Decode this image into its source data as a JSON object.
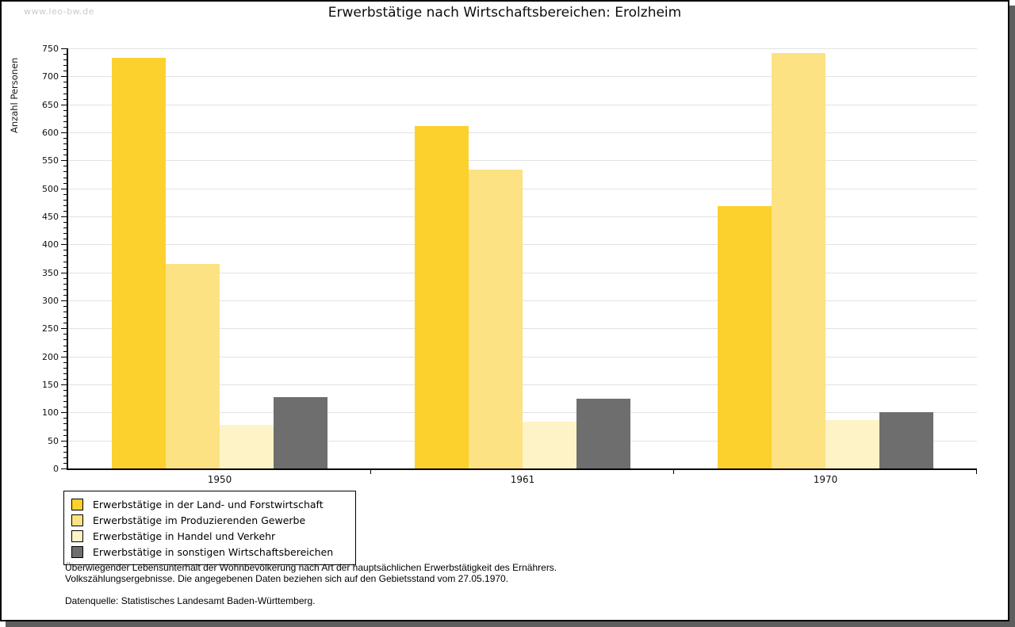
{
  "watermark": "www.leo-bw.de",
  "title": "Erwerbstätige nach Wirtschaftsbereichen: Erolzheim",
  "chart_data": {
    "type": "bar",
    "title": "Erwerbstätige nach Wirtschaftsbereichen: Erolzheim",
    "xlabel": "",
    "ylabel": "Anzahl Personen",
    "categories": [
      "1950",
      "1961",
      "1970"
    ],
    "series": [
      {
        "name": "Erwerbstätige in der Land- und Forstwirtschaft",
        "color": "#fcd12d",
        "values": [
          733,
          611,
          468
        ]
      },
      {
        "name": "Erwerbstätige im Produzierenden Gewerbe",
        "color": "#fce282",
        "values": [
          365,
          534,
          741
        ]
      },
      {
        "name": "Erwerbstätige in Handel und Verkehr",
        "color": "#fdf3c6",
        "values": [
          78,
          84,
          86
        ]
      },
      {
        "name": "Erwerbstätige in sonstigen Wirtschaftsbereichen",
        "color": "#6e6e6e",
        "values": [
          127,
          124,
          101
        ]
      }
    ],
    "ylim": [
      0,
      750
    ],
    "ytick_step": 50,
    "minor_tick_step": 10,
    "grid": true,
    "gridline_color": "#e2e2e2",
    "legend_position": "bottom-left"
  },
  "footnote_line1": "Überwiegender Lebensunterhalt der Wohnbevölkerung nach Art der hauptsächlichen Erwerbstätigkeit des Ernährers.",
  "footnote_line2": "Volkszählungsergebnisse. Die angegebenen Daten beziehen sich auf den Gebietsstand vom 27.05.1970.",
  "source": "Datenquelle: Statistisches Landesamt Baden-Württemberg."
}
